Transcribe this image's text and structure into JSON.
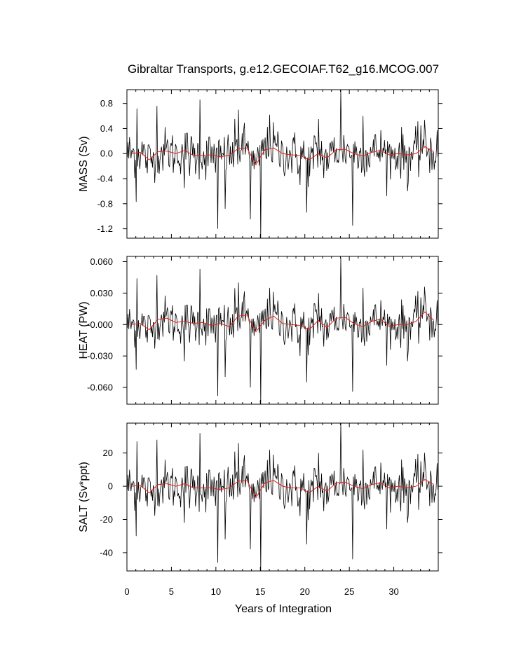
{
  "chart_data": {
    "type": "line",
    "title": "Gibraltar Transports, g.e12.GECOIAF.T62_g16.MCOG.007",
    "xlabel": "Years of Integration",
    "xlim": [
      0,
      35
    ],
    "x_ticks": [
      0,
      5,
      10,
      15,
      20,
      25,
      30
    ],
    "x_tick_labels": [
      "0",
      "5",
      "10",
      "15",
      "20",
      "25",
      "30"
    ],
    "grid": false,
    "legend": "none",
    "colors": {
      "monthly": "#000000",
      "annual": "#e0201a",
      "frame": "#000000"
    },
    "panels": [
      {
        "name": "mass",
        "ylabel": "MASS (Sv)",
        "ylim": [
          -1.35,
          1.02
        ],
        "y_ticks": [
          0.8,
          0.4,
          0.0,
          -0.4,
          -0.8,
          -1.2
        ],
        "y_tick_labels": [
          "0.8",
          "0.4",
          "0.0",
          "-0.4",
          "-0.8",
          "-1.2"
        ],
        "peaks": [
          {
            "x": 1.0,
            "y": -0.77
          },
          {
            "x": 1.05,
            "y": 0.72
          },
          {
            "x": 3.3,
            "y": 0.76
          },
          {
            "x": 6.4,
            "y": -0.55
          },
          {
            "x": 8.2,
            "y": 0.86
          },
          {
            "x": 10.2,
            "y": -1.2
          },
          {
            "x": 11.0,
            "y": -0.88
          },
          {
            "x": 12.5,
            "y": 0.7
          },
          {
            "x": 13.8,
            "y": -1.05
          },
          {
            "x": 15.0,
            "y": -1.35
          },
          {
            "x": 16.0,
            "y": 0.62
          },
          {
            "x": 19.4,
            "y": -0.5
          },
          {
            "x": 20.2,
            "y": -0.94
          },
          {
            "x": 21.5,
            "y": 0.55
          },
          {
            "x": 24.0,
            "y": 1.02
          },
          {
            "x": 25.3,
            "y": -1.15
          },
          {
            "x": 26.5,
            "y": 0.6
          },
          {
            "x": 31.5,
            "y": -0.6
          },
          {
            "x": 33.0,
            "y": 0.45
          }
        ],
        "annual_x": [
          0.5,
          1.5,
          2.5,
          3.5,
          4.5,
          5.5,
          6.5,
          7.5,
          8.5,
          9.5,
          10.5,
          11.5,
          12.5,
          13.5,
          14.5,
          15.5,
          16.5,
          17.5,
          18.5,
          19.5,
          20.5,
          21.5,
          22.5,
          23.5,
          24.5,
          25.5,
          26.5,
          27.5,
          28.5,
          29.5,
          30.5,
          31.5,
          32.5,
          33.5,
          34.5
        ],
        "annual_y": [
          0.0,
          0.02,
          -0.1,
          0.03,
          0.04,
          0.0,
          0.05,
          -0.03,
          -0.03,
          -0.02,
          -0.05,
          -0.03,
          0.08,
          0.09,
          -0.18,
          0.06,
          0.09,
          0.0,
          -0.02,
          -0.03,
          -0.1,
          0.0,
          -0.07,
          0.06,
          0.07,
          0.0,
          -0.04,
          0.02,
          0.05,
          -0.02,
          0.0,
          -0.02,
          0.0,
          0.11,
          0.03
        ]
      },
      {
        "name": "heat",
        "ylabel": "HEAT (PW)",
        "ylim": [
          -0.076,
          0.065
        ],
        "y_ticks": [
          0.06,
          0.03,
          0.0,
          -0.03,
          -0.06
        ],
        "y_tick_labels": [
          "0.060",
          "0.030",
          "-0.000",
          "-0.030",
          "-0.060"
        ],
        "peaks": [
          {
            "x": 1.0,
            "y": -0.043
          },
          {
            "x": 1.05,
            "y": 0.044
          },
          {
            "x": 3.3,
            "y": 0.047
          },
          {
            "x": 6.4,
            "y": -0.035
          },
          {
            "x": 8.2,
            "y": 0.053
          },
          {
            "x": 10.2,
            "y": -0.068
          },
          {
            "x": 11.0,
            "y": -0.05
          },
          {
            "x": 12.5,
            "y": 0.04
          },
          {
            "x": 13.8,
            "y": -0.06
          },
          {
            "x": 15.0,
            "y": -0.076
          },
          {
            "x": 16.0,
            "y": 0.035
          },
          {
            "x": 19.4,
            "y": -0.03
          },
          {
            "x": 20.2,
            "y": -0.055
          },
          {
            "x": 21.5,
            "y": 0.03
          },
          {
            "x": 24.0,
            "y": 0.064
          },
          {
            "x": 25.3,
            "y": -0.064
          },
          {
            "x": 26.5,
            "y": 0.035
          },
          {
            "x": 31.5,
            "y": -0.035
          },
          {
            "x": 33.0,
            "y": 0.026
          }
        ],
        "annual_x": [
          0.5,
          1.5,
          2.5,
          3.5,
          4.5,
          5.5,
          6.5,
          7.5,
          8.5,
          9.5,
          10.5,
          11.5,
          12.5,
          13.5,
          14.5,
          15.5,
          16.5,
          17.5,
          18.5,
          19.5,
          20.5,
          21.5,
          22.5,
          23.5,
          24.5,
          25.5,
          26.5,
          27.5,
          28.5,
          29.5,
          30.5,
          31.5,
          32.5,
          33.5,
          34.5
        ],
        "annual_y": [
          0.0,
          0.001,
          -0.005,
          0.005,
          0.006,
          0.002,
          0.003,
          0.001,
          0.002,
          -0.001,
          0.001,
          -0.002,
          0.008,
          0.009,
          -0.007,
          0.004,
          0.008,
          0.001,
          0.0,
          -0.001,
          -0.005,
          0.004,
          -0.003,
          0.006,
          0.007,
          0.001,
          -0.002,
          0.003,
          0.005,
          -0.002,
          0.0,
          0.0,
          0.003,
          0.012,
          0.004
        ]
      },
      {
        "name": "salt",
        "ylabel": "SALT (Sv*ppt)",
        "ylim": [
          -51,
          38
        ],
        "y_ticks": [
          20,
          0,
          -20,
          -40
        ],
        "y_tick_labels": [
          "20",
          "0",
          "-20",
          "-40"
        ],
        "peaks": [
          {
            "x": 1.0,
            "y": -30
          },
          {
            "x": 1.05,
            "y": 27
          },
          {
            "x": 3.3,
            "y": 28
          },
          {
            "x": 6.4,
            "y": -22
          },
          {
            "x": 8.2,
            "y": 32
          },
          {
            "x": 10.2,
            "y": -46
          },
          {
            "x": 11.0,
            "y": -32
          },
          {
            "x": 12.5,
            "y": 26
          },
          {
            "x": 13.8,
            "y": -38
          },
          {
            "x": 15.0,
            "y": -51
          },
          {
            "x": 16.0,
            "y": 22
          },
          {
            "x": 19.4,
            "y": -18
          },
          {
            "x": 20.2,
            "y": -35
          },
          {
            "x": 21.5,
            "y": 20
          },
          {
            "x": 24.0,
            "y": 38
          },
          {
            "x": 25.3,
            "y": -44
          },
          {
            "x": 26.5,
            "y": 22
          },
          {
            "x": 31.5,
            "y": -22
          },
          {
            "x": 33.0,
            "y": 15
          }
        ],
        "annual_x": [
          0.5,
          1.5,
          2.5,
          3.5,
          4.5,
          5.5,
          6.5,
          7.5,
          8.5,
          9.5,
          10.5,
          11.5,
          12.5,
          13.5,
          14.5,
          15.5,
          16.5,
          17.5,
          18.5,
          19.5,
          20.5,
          21.5,
          22.5,
          23.5,
          24.5,
          25.5,
          26.5,
          27.5,
          28.5,
          29.5,
          30.5,
          31.5,
          32.5,
          33.5,
          34.5
        ],
        "annual_y": [
          0.0,
          0.5,
          -4.0,
          1.0,
          1.5,
          0.0,
          1.5,
          -1.0,
          -1.0,
          -1.0,
          -2.0,
          -1.0,
          3.0,
          3.5,
          -7.0,
          2.0,
          3.5,
          0.0,
          -1.0,
          -1.0,
          -4.0,
          0.0,
          -3.0,
          2.0,
          2.5,
          0.0,
          -1.5,
          1.0,
          2.0,
          -1.0,
          0.0,
          -1.0,
          0.0,
          4.0,
          1.0
        ]
      }
    ]
  }
}
